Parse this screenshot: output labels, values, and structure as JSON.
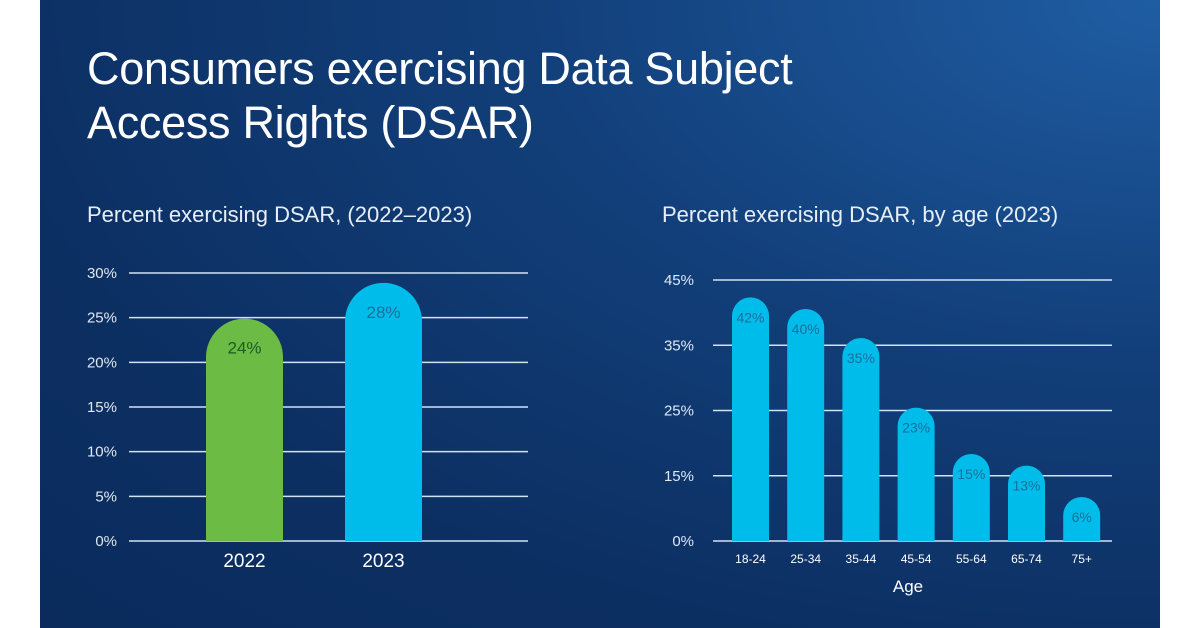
{
  "title_lines": [
    "Consumers exercising Data Subject",
    "Access Rights (DSAR)"
  ],
  "colors": {
    "background": "#0c2f62",
    "green": "#6cbb45",
    "cyan": "#00bceb",
    "gridline": "#cfe3f5"
  },
  "chart_data": [
    {
      "type": "bar",
      "title": "Percent exercising DSAR, (2022–2023)",
      "xlabel": "",
      "ylabel": "",
      "categories": [
        "2022",
        "2023"
      ],
      "values": [
        24,
        28
      ],
      "data_labels": [
        "24%",
        "28%"
      ],
      "bar_colors": [
        "#6cbb45",
        "#00bceb"
      ],
      "label_colors": [
        "#1d5a25",
        "#1a6f9c"
      ],
      "yticks": [
        "0%",
        "5%",
        "10%",
        "15%",
        "20%",
        "25%",
        "30%"
      ],
      "ylim": [
        0,
        30
      ],
      "grid": true
    },
    {
      "type": "bar",
      "title": "Percent exercising DSAR, by age (2023)",
      "xlabel": "Age",
      "ylabel": "",
      "categories": [
        "18-24",
        "25-34",
        "35-44",
        "45-54",
        "55-64",
        "65-74",
        "75+"
      ],
      "values": [
        42,
        40,
        35,
        23,
        15,
        13,
        6
      ],
      "data_labels": [
        "42%",
        "40%",
        "35%",
        "23%",
        "15%",
        "13%",
        "6%"
      ],
      "bar_color": "#00bceb",
      "label_color": "#1a6f9c",
      "yticks": [
        "0%",
        "15%",
        "25%",
        "35%",
        "45%"
      ],
      "ylim": [
        0,
        45
      ],
      "grid": true
    }
  ]
}
